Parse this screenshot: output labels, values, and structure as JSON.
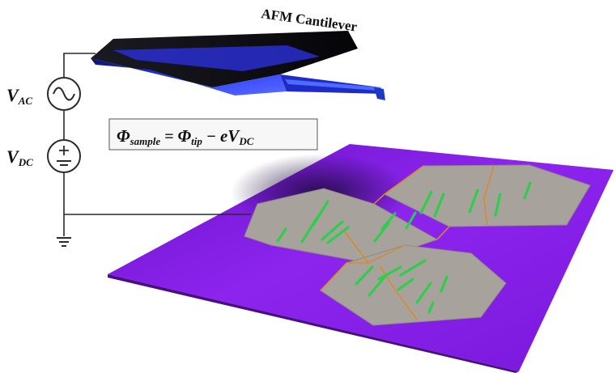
{
  "cantilever": {
    "label": "AFM Cantilever"
  },
  "sources": {
    "ac": {
      "symbol": "V",
      "subscript": "AC"
    },
    "dc": {
      "symbol": "V",
      "subscript": "DC"
    }
  },
  "equation": {
    "phi_sample": "Φ",
    "sample_sub": "sample",
    "equals": "=",
    "phi_tip": "Φ",
    "tip_sub": "tip",
    "minus": "−",
    "e_v": "eV",
    "dc_sub": "DC"
  },
  "colors": {
    "substrate": "#8a1fe6",
    "cantilever_body": "#2f35ff",
    "cantilever_top": "#0a0a12",
    "grain": "#a8a29c",
    "grain_boundary": "#d88a2a",
    "domains": "#29d04a",
    "wire": "#2b2b2b"
  }
}
